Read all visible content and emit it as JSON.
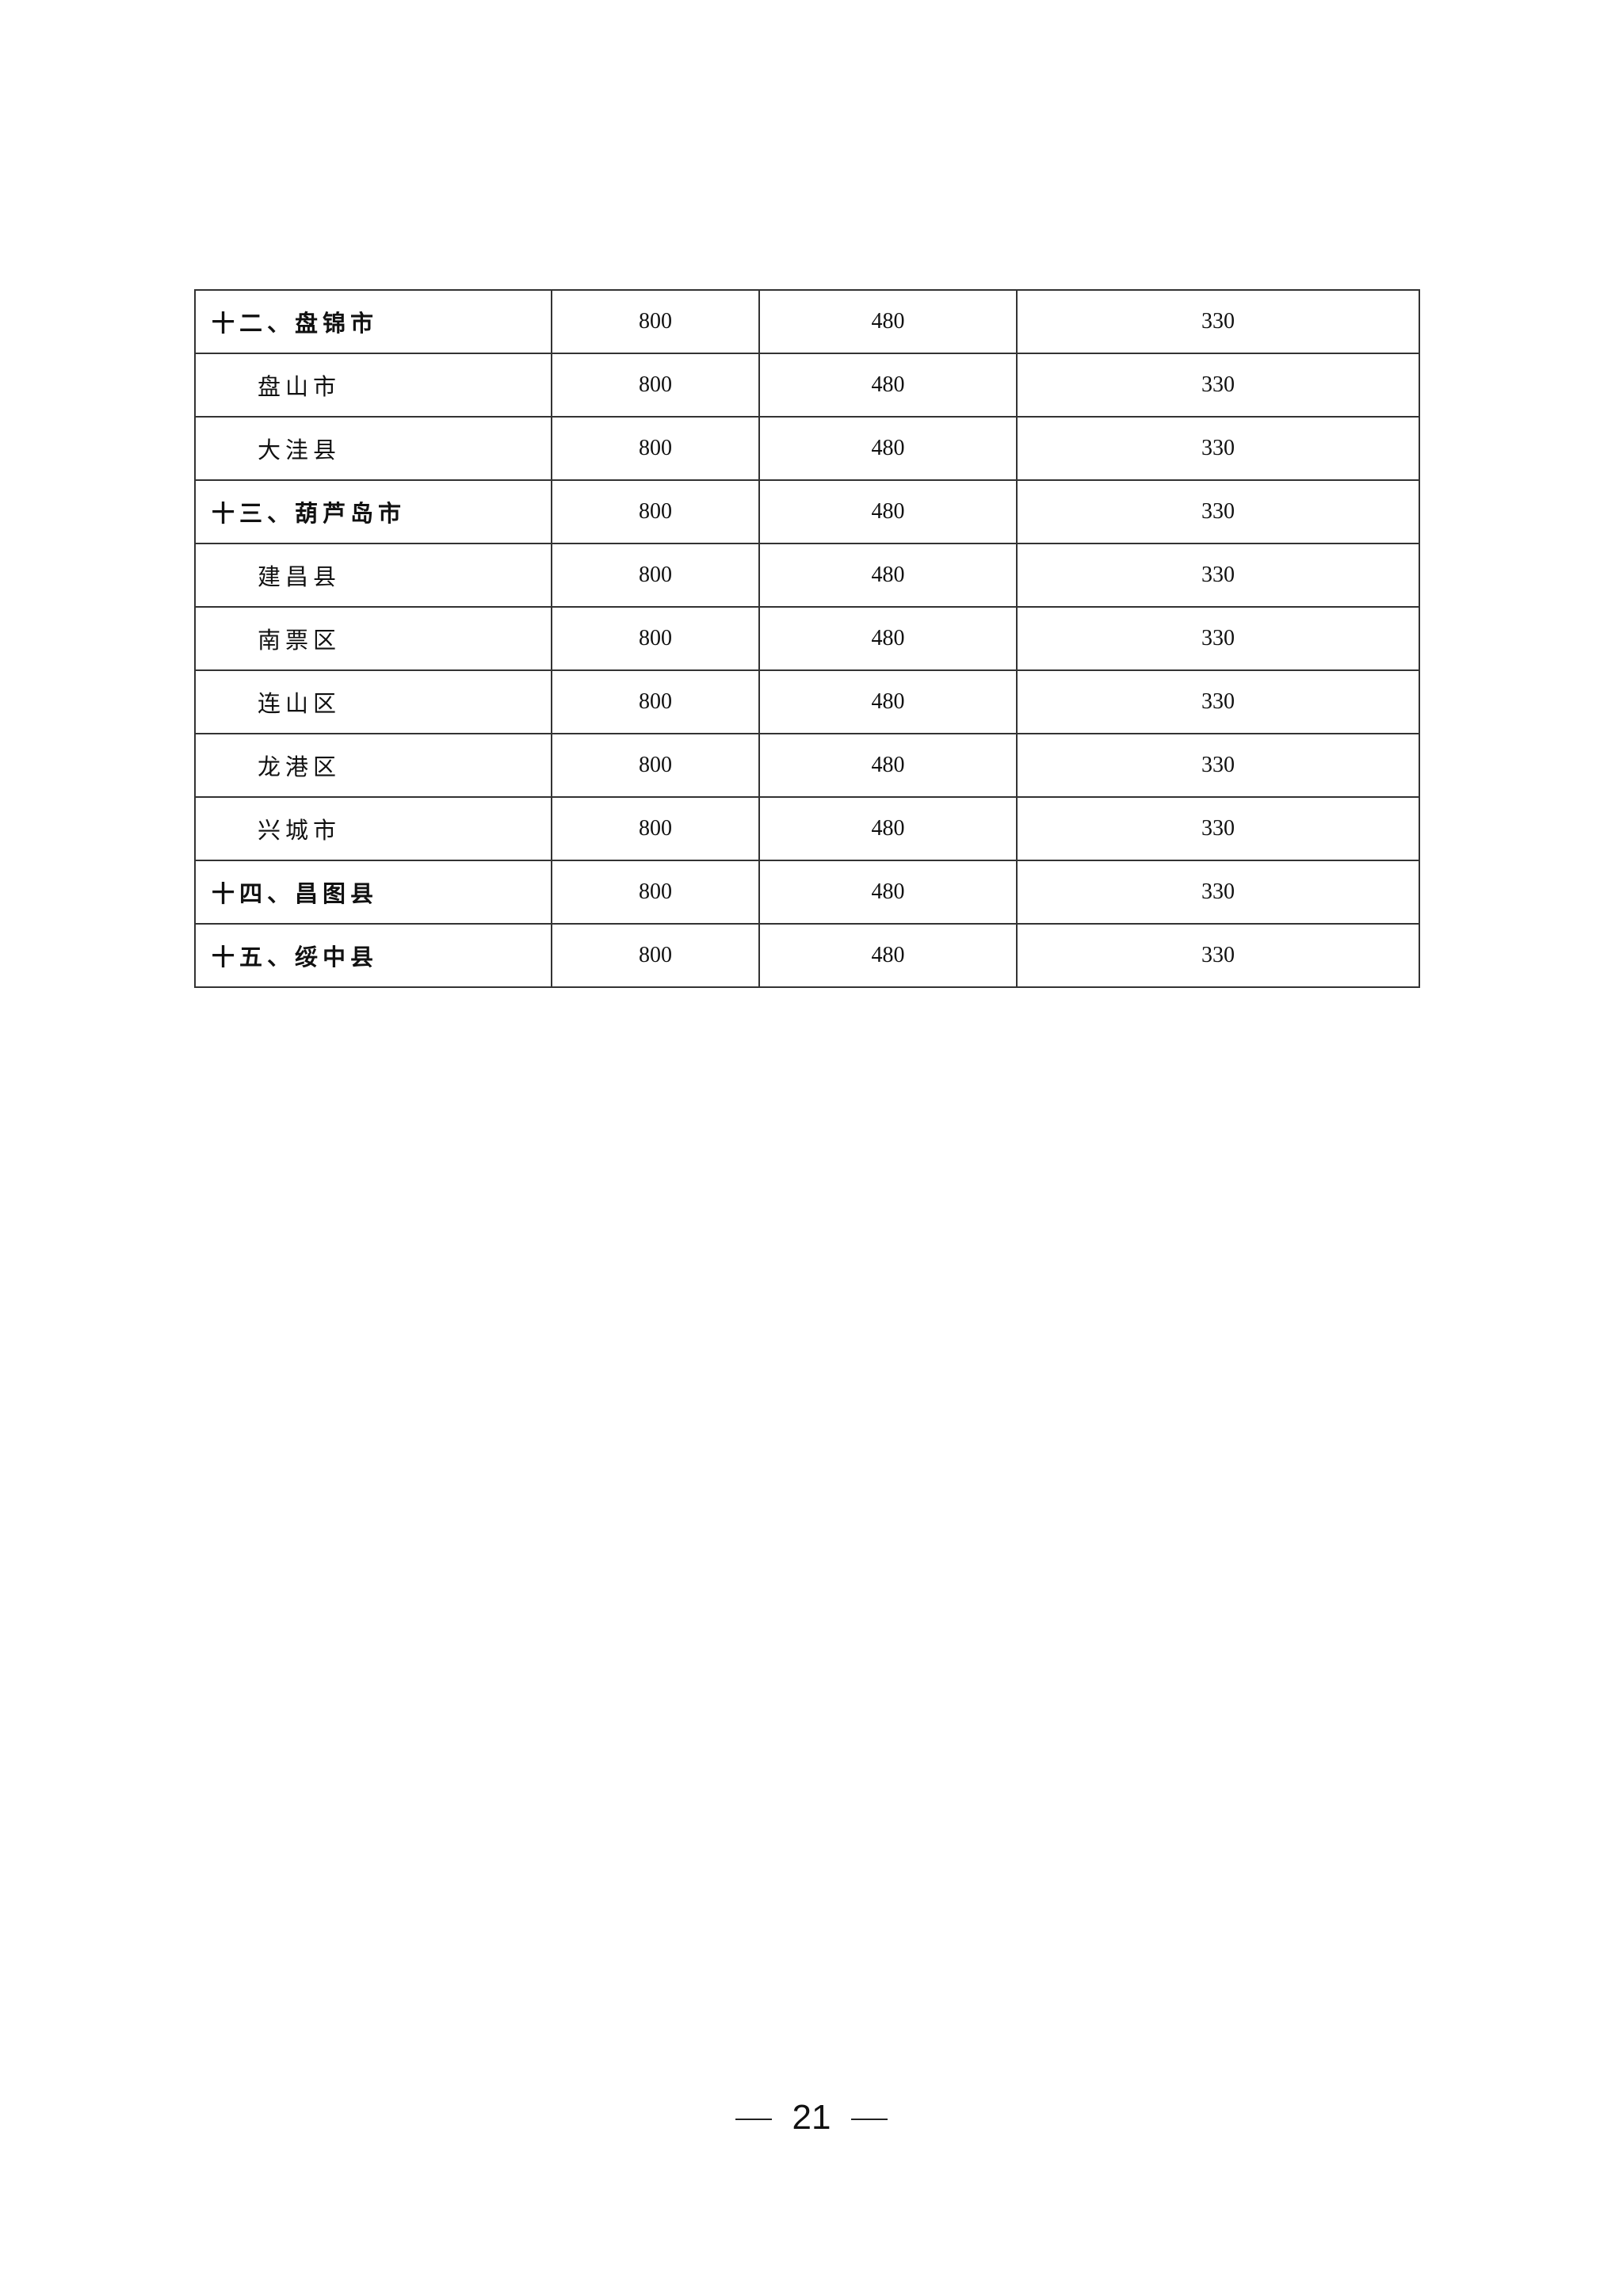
{
  "rows": [
    {
      "name": "十二、盘锦市",
      "level": "top",
      "v1": "800",
      "v2": "480",
      "v3": "330"
    },
    {
      "name": "盘山市",
      "level": "sub",
      "v1": "800",
      "v2": "480",
      "v3": "330"
    },
    {
      "name": "大洼县",
      "level": "sub",
      "v1": "800",
      "v2": "480",
      "v3": "330"
    },
    {
      "name": "十三、葫芦岛市",
      "level": "top",
      "v1": "800",
      "v2": "480",
      "v3": "330"
    },
    {
      "name": "建昌县",
      "level": "sub",
      "v1": "800",
      "v2": "480",
      "v3": "330"
    },
    {
      "name": "南票区",
      "level": "sub",
      "v1": "800",
      "v2": "480",
      "v3": "330"
    },
    {
      "name": "连山区",
      "level": "sub",
      "v1": "800",
      "v2": "480",
      "v3": "330"
    },
    {
      "name": "龙港区",
      "level": "sub",
      "v1": "800",
      "v2": "480",
      "v3": "330"
    },
    {
      "name": "兴城市",
      "level": "sub",
      "v1": "800",
      "v2": "480",
      "v3": "330"
    },
    {
      "name": "十四、昌图县",
      "level": "top",
      "v1": "800",
      "v2": "480",
      "v3": "330"
    },
    {
      "name": "十五、绥中县",
      "level": "top",
      "v1": "800",
      "v2": "480",
      "v3": "330"
    }
  ],
  "page_number": "21"
}
